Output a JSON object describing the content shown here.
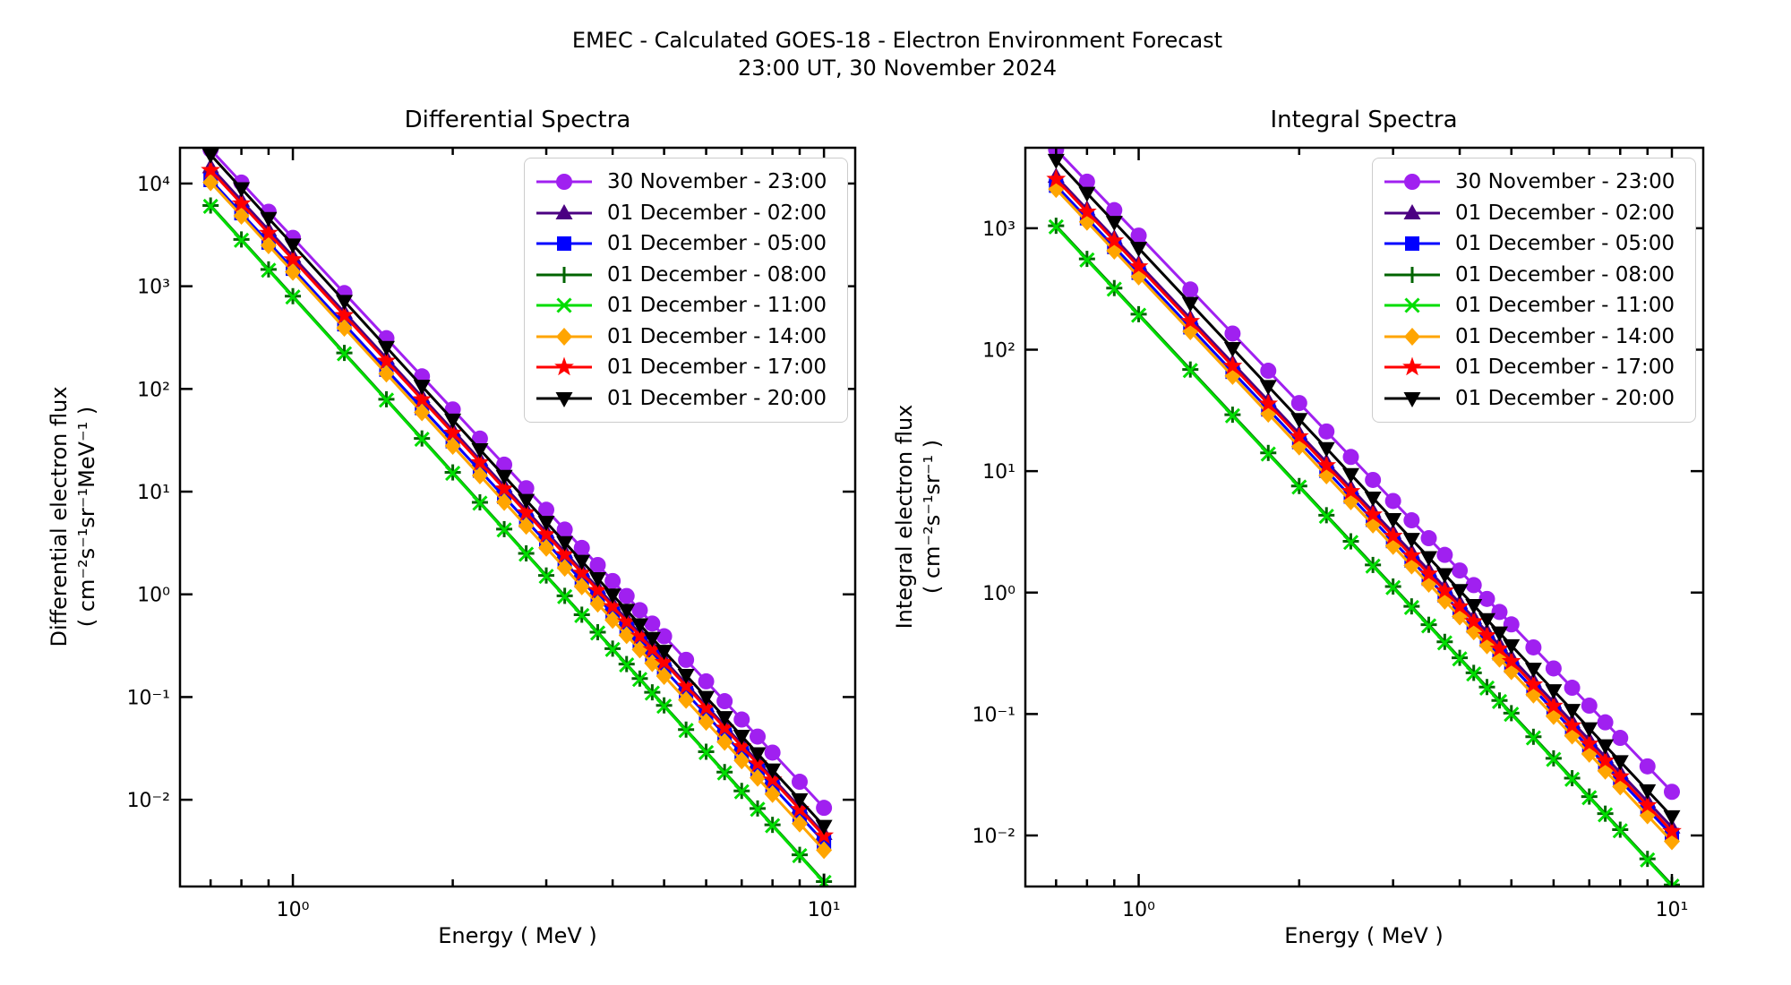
{
  "figure": {
    "suptitle_line1": "EMEC - Calculated GOES-18 - Electron Environment Forecast",
    "suptitle_line2": "23:00 UT, 30 November 2024",
    "background": "#ffffff"
  },
  "chart_data": [
    {
      "type": "line",
      "title": "Differential Spectra",
      "xlabel": "Energy ( MeV )",
      "ylabel_line1": "Differential electron flux",
      "ylabel_line2": "( cm⁻²s⁻¹sr⁻¹MeV⁻¹ )",
      "x_scale": "log",
      "y_scale": "log",
      "xlim": [
        0.613,
        11.45
      ],
      "ylim": [
        0.00143,
        22300
      ],
      "grid": false,
      "legend_location": "upper right",
      "x_major_ticks": [
        {
          "value": 1,
          "label": "10⁰"
        },
        {
          "value": 10,
          "label": "10¹"
        }
      ],
      "x_minor_ticks": [
        0.7,
        0.8,
        0.9,
        2,
        3,
        4,
        5,
        6,
        7,
        8,
        9
      ],
      "y_major_ticks": [
        {
          "value": 10000,
          "label": "10⁴"
        },
        {
          "value": 1000,
          "label": "10³"
        },
        {
          "value": 100,
          "label": "10²"
        },
        {
          "value": 10,
          "label": "10¹"
        },
        {
          "value": 1,
          "label": "10⁰"
        },
        {
          "value": 0.1,
          "label": "10⁻¹"
        },
        {
          "value": 0.01,
          "label": "10⁻²"
        }
      ],
      "energies_MeV": [
        0.7,
        0.8,
        0.9,
        1.0,
        1.25,
        1.5,
        1.75,
        2.0,
        2.25,
        2.5,
        2.75,
        3.0,
        3.25,
        3.5,
        3.75,
        4.0,
        4.25,
        4.5,
        4.75,
        5.0,
        5.5,
        6.0,
        6.5,
        7.0,
        7.5,
        8.0,
        9.0,
        10.0
      ],
      "flux_model": "flux = amplitude_1MeV * E^(-spectral_index)",
      "series": [
        {
          "label": "30 November - 23:00",
          "color": "#A020F0",
          "marker": "circle",
          "amplitude_1MeV": 2960,
          "spectral_index": 5.55,
          "flux_at_0p7": 21500,
          "flux_at_10": 0.0083
        },
        {
          "label": "01 December - 02:00",
          "color": "#4B0082",
          "marker": "triangle-up",
          "amplitude_1MeV": 1950,
          "spectral_index": 5.62,
          "flux_at_0p7": 14500,
          "flux_at_10": 0.0047
        },
        {
          "label": "01 December - 05:00",
          "color": "#0000FF",
          "marker": "square",
          "amplitude_1MeV": 1480,
          "spectral_index": 5.58,
          "flux_at_0p7": 10800,
          "flux_at_10": 0.0039
        },
        {
          "label": "01 December - 08:00",
          "color": "#006400",
          "marker": "plus",
          "amplitude_1MeV": 800,
          "spectral_index": 5.7,
          "flux_at_0p7": 6100,
          "flux_at_10": 0.0016
        },
        {
          "label": "01 December - 11:00",
          "color": "#00DD00",
          "marker": "x",
          "amplitude_1MeV": 785,
          "spectral_index": 5.7,
          "flux_at_0p7": 6000,
          "flux_at_10": 0.00157
        },
        {
          "label": "01 December - 14:00",
          "color": "#FFA500",
          "marker": "diamond",
          "amplitude_1MeV": 1380,
          "spectral_index": 5.63,
          "flux_at_0p7": 10300,
          "flux_at_10": 0.0032
        },
        {
          "label": "01 December - 17:00",
          "color": "#FF0000",
          "marker": "star",
          "amplitude_1MeV": 1820,
          "spectral_index": 5.61,
          "flux_at_0p7": 13500,
          "flux_at_10": 0.0045
        },
        {
          "label": "01 December - 20:00",
          "color": "#000000",
          "marker": "triangle-down",
          "amplitude_1MeV": 2530,
          "spectral_index": 5.66,
          "flux_at_0p7": 19100,
          "flux_at_10": 0.0055
        }
      ]
    },
    {
      "type": "line",
      "title": "Integral Spectra",
      "xlabel": "Energy ( MeV )",
      "ylabel_line1": "Integral electron flux",
      "ylabel_line2": "( cm⁻²s⁻¹sr⁻¹ )",
      "x_scale": "log",
      "y_scale": "log",
      "xlim": [
        0.613,
        11.45
      ],
      "ylim": [
        0.0038,
        4600
      ],
      "grid": false,
      "legend_location": "upper right",
      "x_major_ticks": [
        {
          "value": 1,
          "label": "10⁰"
        },
        {
          "value": 10,
          "label": "10¹"
        }
      ],
      "x_minor_ticks": [
        0.7,
        0.8,
        0.9,
        2,
        3,
        4,
        5,
        6,
        7,
        8,
        9
      ],
      "y_major_ticks": [
        {
          "value": 1000,
          "label": "10³"
        },
        {
          "value": 100,
          "label": "10²"
        },
        {
          "value": 10,
          "label": "10¹"
        },
        {
          "value": 1,
          "label": "10⁰"
        },
        {
          "value": 0.1,
          "label": "10⁻¹"
        },
        {
          "value": 0.01,
          "label": "10⁻²"
        }
      ],
      "energies_MeV": [
        0.7,
        0.8,
        0.9,
        1.0,
        1.25,
        1.5,
        1.75,
        2.0,
        2.25,
        2.5,
        2.75,
        3.0,
        3.25,
        3.5,
        3.75,
        4.0,
        4.25,
        4.5,
        4.75,
        5.0,
        5.5,
        6.0,
        6.5,
        7.0,
        7.5,
        8.0,
        9.0,
        10.0
      ],
      "flux_model": "flux = amplitude_1MeV * E^(-spectral_index)",
      "series": [
        {
          "label": "30 November - 23:00",
          "color": "#A020F0",
          "marker": "circle",
          "amplitude_1MeV": 870,
          "spectral_index": 4.58,
          "flux_at_0p7": 4460,
          "flux_at_10": 0.023
        },
        {
          "label": "01 December - 02:00",
          "color": "#4B0082",
          "marker": "triangle-up",
          "amplitude_1MeV": 510,
          "spectral_index": 4.64,
          "flux_at_0p7": 2670,
          "flux_at_10": 0.0117
        },
        {
          "label": "01 December - 05:00",
          "color": "#0000FF",
          "marker": "square",
          "amplitude_1MeV": 430,
          "spectral_index": 4.63,
          "flux_at_0p7": 2250,
          "flux_at_10": 0.0101
        },
        {
          "label": "01 December - 08:00",
          "color": "#006400",
          "marker": "plus",
          "amplitude_1MeV": 196,
          "spectral_index": 4.7,
          "flux_at_0p7": 1050,
          "flux_at_10": 0.0039
        },
        {
          "label": "01 December - 11:00",
          "color": "#00DD00",
          "marker": "x",
          "amplitude_1MeV": 192,
          "spectral_index": 4.7,
          "flux_at_0p7": 1030,
          "flux_at_10": 0.0038
        },
        {
          "label": "01 December - 14:00",
          "color": "#FFA500",
          "marker": "diamond",
          "amplitude_1MeV": 400,
          "spectral_index": 4.65,
          "flux_at_0p7": 2100,
          "flux_at_10": 0.009
        },
        {
          "label": "01 December - 17:00",
          "color": "#FF0000",
          "marker": "star",
          "amplitude_1MeV": 483,
          "spectral_index": 4.65,
          "flux_at_0p7": 2540,
          "flux_at_10": 0.0109
        },
        {
          "label": "01 December - 20:00",
          "color": "#000000",
          "marker": "triangle-down",
          "amplitude_1MeV": 685,
          "spectral_index": 4.68,
          "flux_at_0p7": 3640,
          "flux_at_10": 0.0143
        }
      ]
    }
  ]
}
